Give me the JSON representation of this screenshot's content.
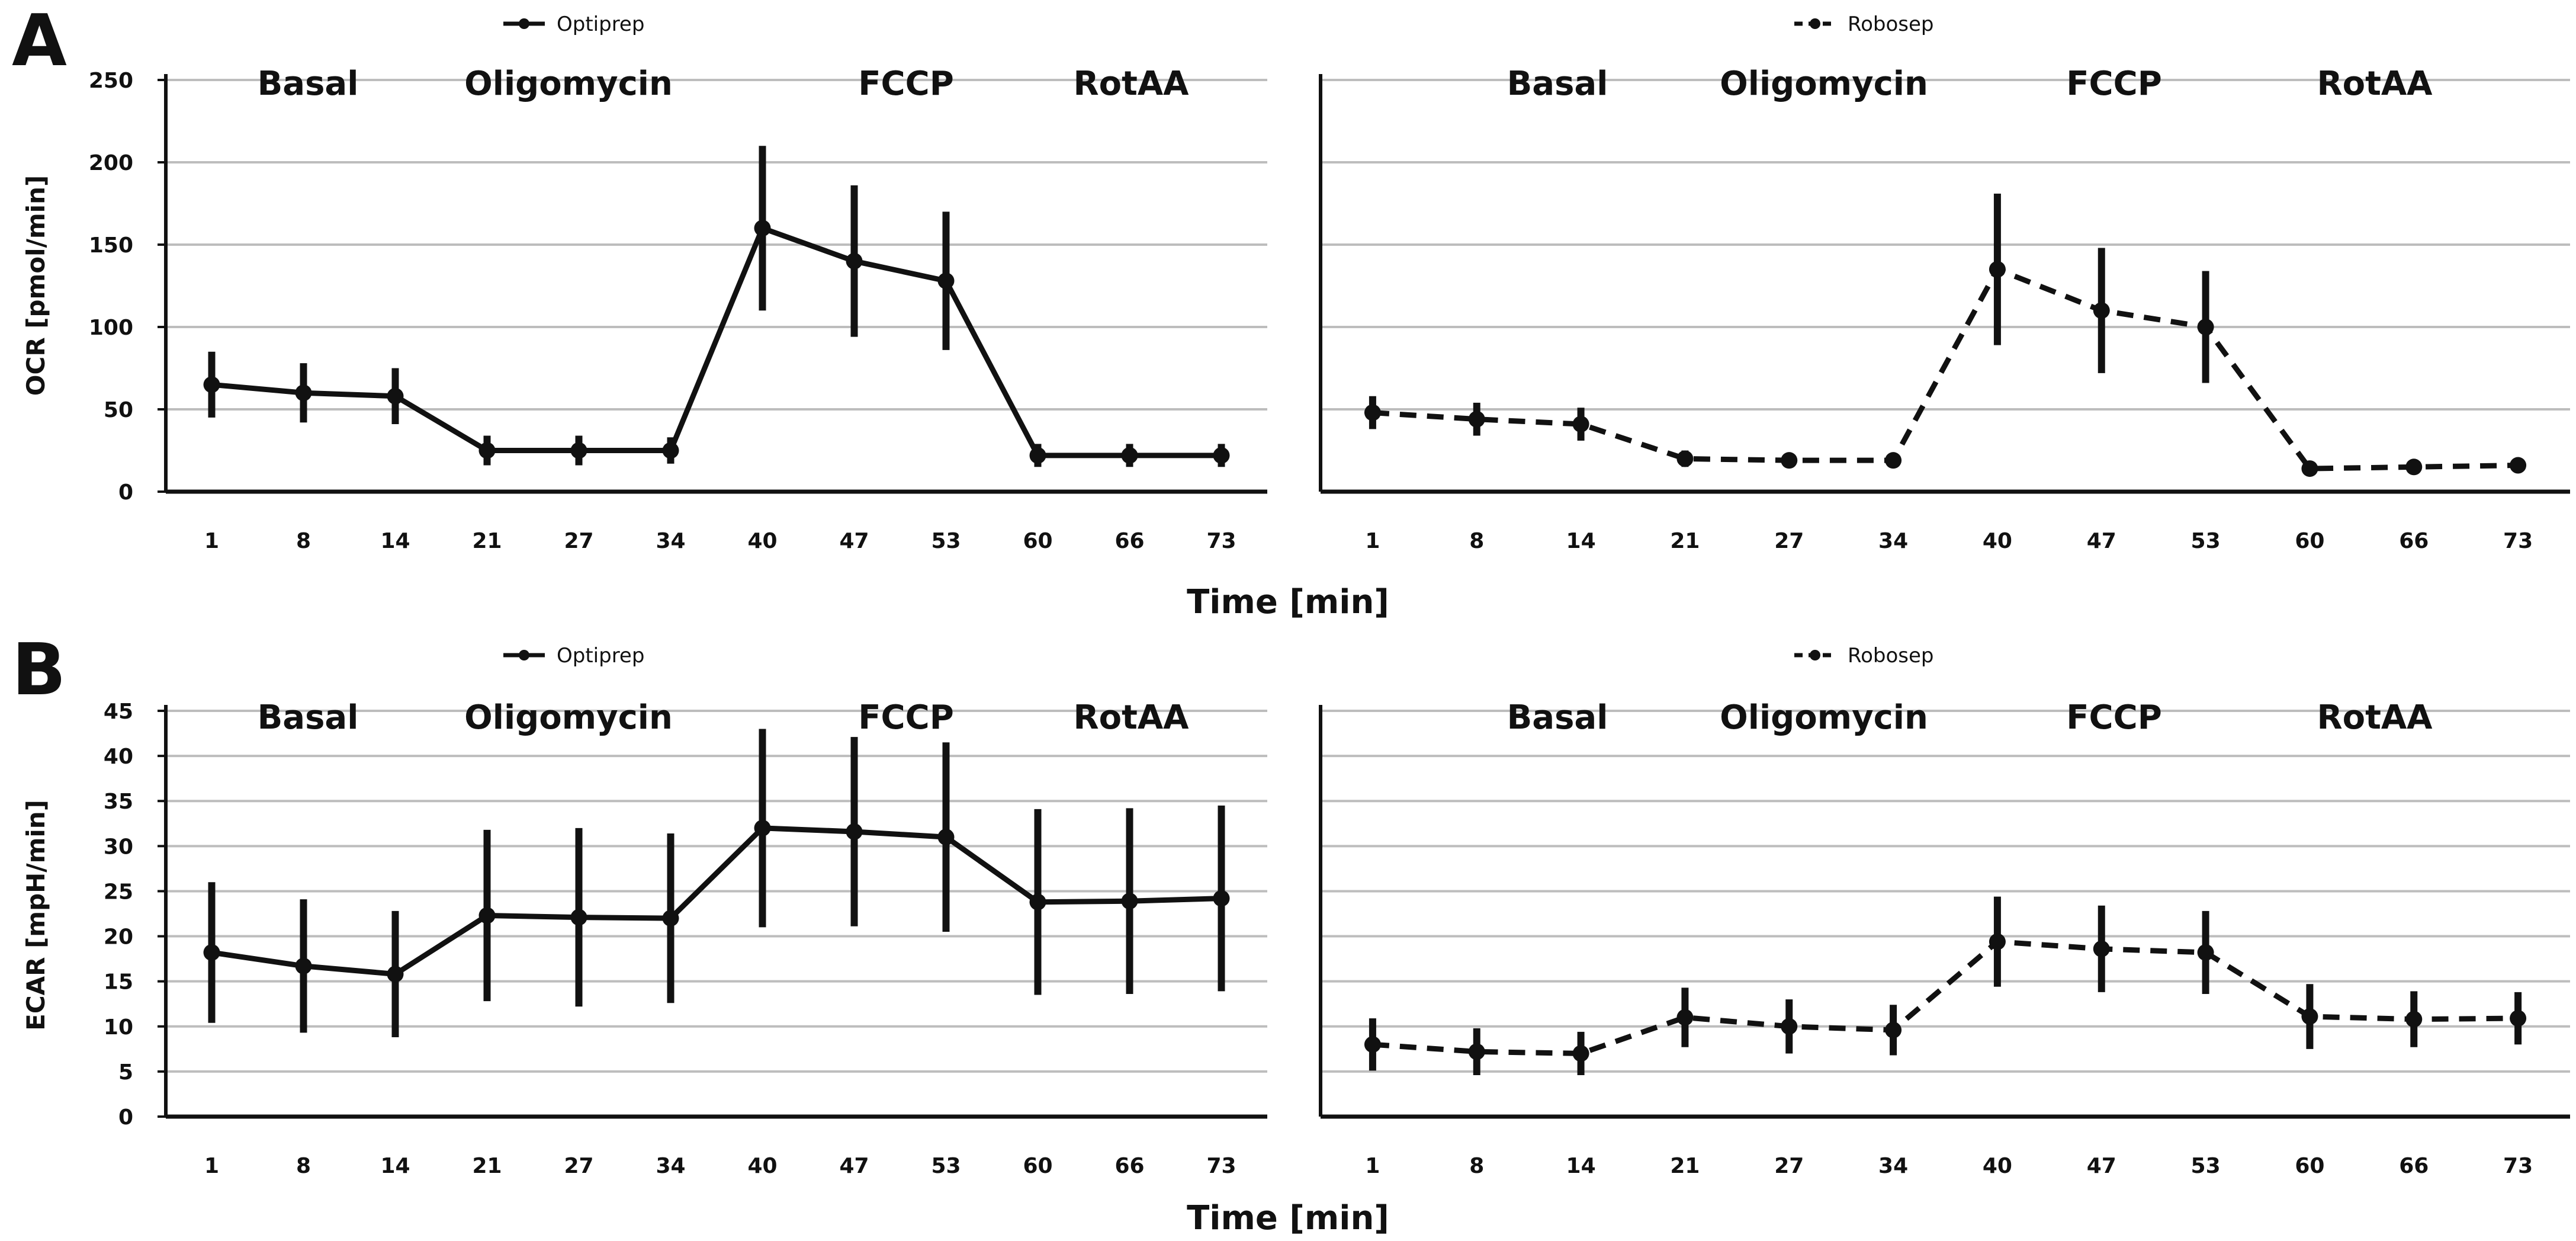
{
  "chart_data": [
    {
      "panel": "A",
      "type": "line",
      "legend": "Optiprep",
      "line_style": "solid",
      "ylabel": "OCR [pmol/min]",
      "ylim": [
        0,
        250
      ],
      "yticks": [
        "0",
        "50",
        "100",
        "150",
        "200",
        "250"
      ],
      "categories": [
        "1",
        "8",
        "14",
        "21",
        "27",
        "34",
        "40",
        "47",
        "53",
        "60",
        "66",
        "73"
      ],
      "phases": [
        "Basal",
        "Oligomycin",
        "FCCP",
        "RotAA"
      ],
      "values": [
        65,
        60,
        58,
        25,
        25,
        25,
        160,
        140,
        128,
        22,
        22,
        22
      ],
      "errors": [
        20,
        18,
        17,
        9,
        9,
        8,
        50,
        46,
        42,
        7,
        7,
        7
      ]
    },
    {
      "panel": "A",
      "type": "line",
      "legend": "Robosep",
      "line_style": "dashed",
      "ylim": [
        0,
        250
      ],
      "categories": [
        "1",
        "8",
        "14",
        "21",
        "27",
        "34",
        "40",
        "47",
        "53",
        "60",
        "66",
        "73"
      ],
      "phases": [
        "Basal",
        "Oligomycin",
        "FCCP",
        "RotAA"
      ],
      "values": [
        48,
        44,
        41,
        20,
        19,
        19,
        135,
        110,
        100,
        14,
        15,
        16
      ],
      "errors": [
        10,
        10,
        10,
        5,
        4,
        4,
        46,
        38,
        34,
        4,
        4,
        4
      ]
    },
    {
      "panel": "B",
      "type": "line",
      "legend": "Optiprep",
      "line_style": "solid",
      "ylabel": "ECAR [mpH/min]",
      "ylim": [
        0,
        45
      ],
      "yticks": [
        "0",
        "5",
        "10",
        "15",
        "20",
        "25",
        "30",
        "35",
        "40",
        "45"
      ],
      "categories": [
        "1",
        "8",
        "14",
        "21",
        "27",
        "34",
        "40",
        "47",
        "53",
        "60",
        "66",
        "73"
      ],
      "phases": [
        "Basal",
        "Oligomycin",
        "FCCP",
        "RotAA"
      ],
      "values": [
        18.2,
        16.7,
        15.8,
        22.3,
        22.1,
        22.0,
        32.0,
        31.6,
        31.0,
        23.8,
        23.9,
        24.2
      ],
      "errors": [
        7.8,
        7.4,
        7.0,
        9.5,
        9.9,
        9.4,
        11.0,
        10.5,
        10.5,
        10.3,
        10.3,
        10.3
      ]
    },
    {
      "panel": "B",
      "type": "line",
      "legend": "Robosep",
      "line_style": "dashed",
      "ylim": [
        0,
        45
      ],
      "categories": [
        "1",
        "8",
        "14",
        "21",
        "27",
        "34",
        "40",
        "47",
        "53",
        "60",
        "66",
        "73"
      ],
      "phases": [
        "Basal",
        "Oligomycin",
        "FCCP",
        "RotAA"
      ],
      "values": [
        8.0,
        7.2,
        7.0,
        11.0,
        10.0,
        9.6,
        19.4,
        18.6,
        18.2,
        11.1,
        10.8,
        10.9
      ],
      "errors": [
        2.9,
        2.6,
        2.4,
        3.3,
        3.0,
        2.8,
        5.0,
        4.8,
        4.6,
        3.6,
        3.1,
        2.9
      ]
    }
  ],
  "xlabel": "Time [min]",
  "colors": {
    "line": "#111111",
    "grid": "#bdbdbd",
    "axis": "#111111"
  }
}
